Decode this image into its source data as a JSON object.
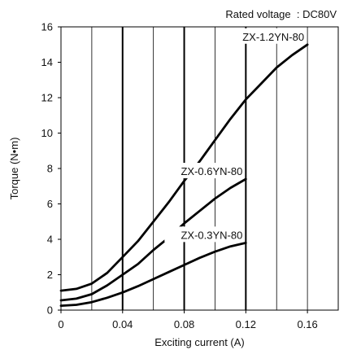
{
  "chart_data": {
    "type": "line",
    "annotation": "Rated voltage  : DC80V",
    "xlabel": "Exciting current (A)",
    "ylabel": "Torque (N•m)",
    "xlim": [
      0,
      0.18
    ],
    "ylim": [
      0,
      16
    ],
    "x_ticks": [
      0,
      0.04,
      0.08,
      0.12,
      0.16
    ],
    "x_tick_labels": [
      "0",
      "0.04",
      "0.08",
      "0.12",
      "0.16"
    ],
    "y_ticks": [
      0,
      2,
      4,
      6,
      8,
      10,
      12,
      14,
      16
    ],
    "y_tick_labels": [
      "0",
      "2",
      "4",
      "6",
      "8",
      "10",
      "12",
      "14",
      "16"
    ],
    "grid": "vertical lines",
    "series": [
      {
        "name": "ZX-1.2YN-80",
        "color": "#000000",
        "points": [
          [
            0,
            1.1
          ],
          [
            0.01,
            1.2
          ],
          [
            0.02,
            1.5
          ],
          [
            0.03,
            2.1
          ],
          [
            0.04,
            3.0
          ],
          [
            0.05,
            3.9
          ],
          [
            0.06,
            5.0
          ],
          [
            0.07,
            6.1
          ],
          [
            0.08,
            7.3
          ],
          [
            0.09,
            8.4
          ],
          [
            0.1,
            9.6
          ],
          [
            0.11,
            10.8
          ],
          [
            0.12,
            11.9
          ],
          [
            0.13,
            12.8
          ],
          [
            0.14,
            13.7
          ],
          [
            0.15,
            14.4
          ],
          [
            0.16,
            15.0
          ]
        ]
      },
      {
        "name": "ZX-0.6YN-80",
        "color": "#000000",
        "points": [
          [
            0,
            0.55
          ],
          [
            0.01,
            0.65
          ],
          [
            0.02,
            0.9
          ],
          [
            0.03,
            1.4
          ],
          [
            0.04,
            2.0
          ],
          [
            0.05,
            2.6
          ],
          [
            0.06,
            3.4
          ],
          [
            0.07,
            4.1
          ],
          [
            0.08,
            4.9
          ],
          [
            0.09,
            5.6
          ],
          [
            0.1,
            6.3
          ],
          [
            0.11,
            6.9
          ],
          [
            0.12,
            7.4
          ]
        ]
      },
      {
        "name": "ZX-0.3YN-80",
        "color": "#000000",
        "points": [
          [
            0,
            0.25
          ],
          [
            0.01,
            0.3
          ],
          [
            0.02,
            0.45
          ],
          [
            0.03,
            0.7
          ],
          [
            0.04,
            1.0
          ],
          [
            0.05,
            1.35
          ],
          [
            0.06,
            1.75
          ],
          [
            0.07,
            2.15
          ],
          [
            0.08,
            2.55
          ],
          [
            0.09,
            2.95
          ],
          [
            0.1,
            3.3
          ],
          [
            0.11,
            3.6
          ],
          [
            0.12,
            3.8
          ]
        ]
      }
    ]
  }
}
